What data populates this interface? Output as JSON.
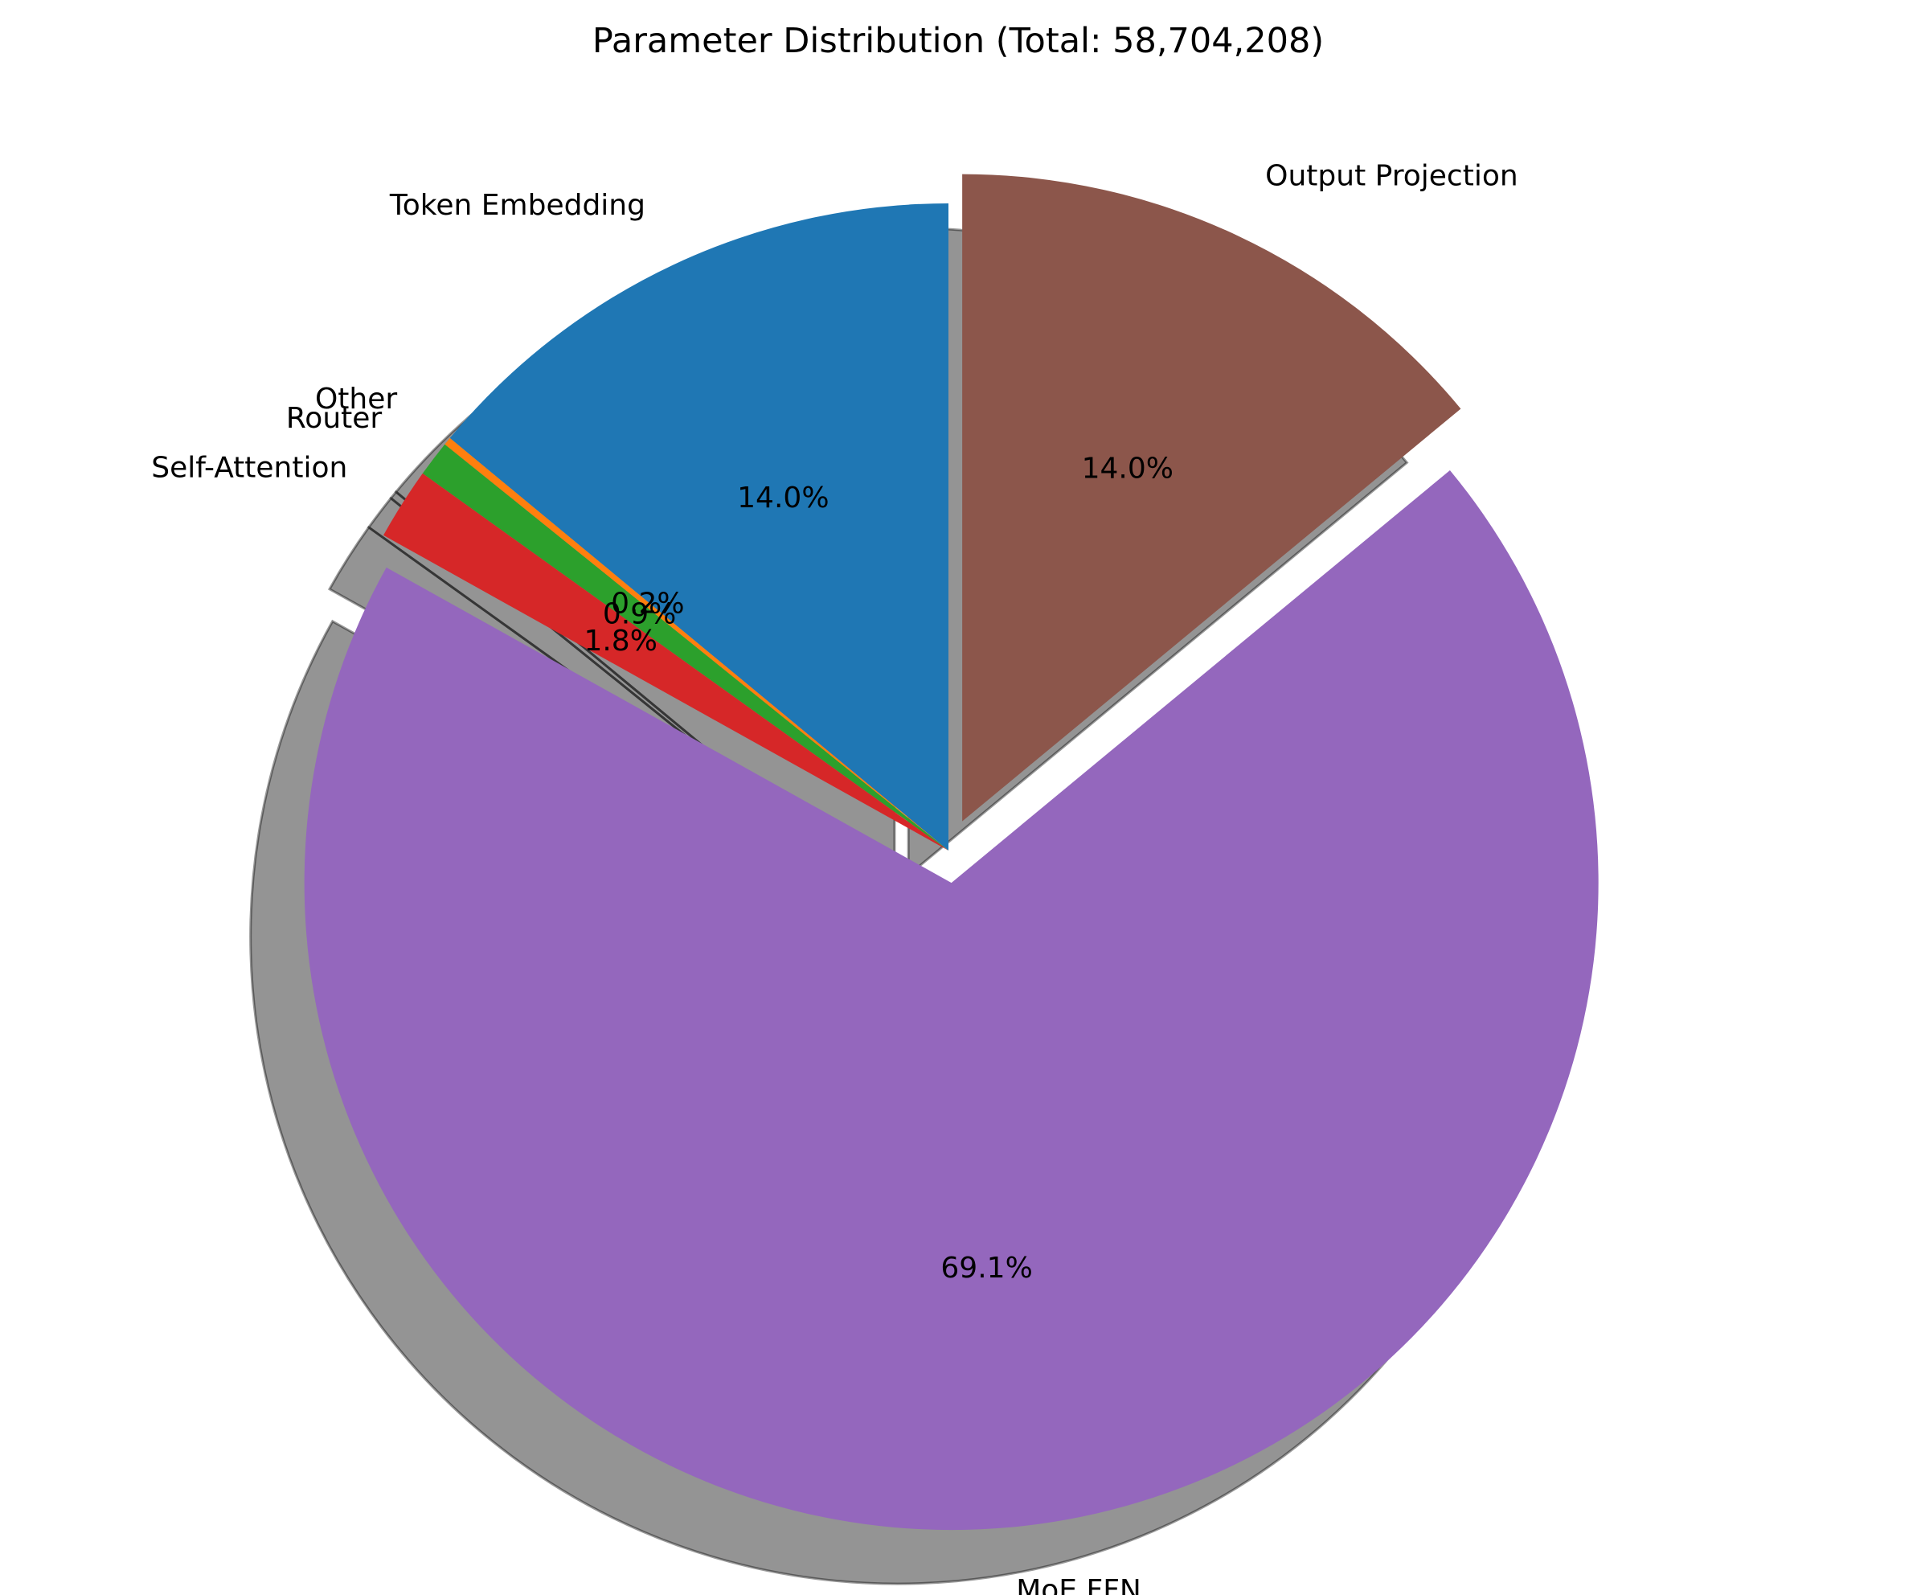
{
  "chart_data": {
    "type": "pie",
    "title": "Parameter Distribution (Total: 58,704,208)",
    "start_angle_deg": 90,
    "direction": "counterclockwise",
    "shadow": true,
    "slices": [
      {
        "label": "Token Embedding",
        "value": 14.0,
        "pct_label": "14.0%",
        "color": "#1f77b4",
        "explode": 0
      },
      {
        "label": "Other",
        "value": 0.2,
        "pct_label": "0.2%",
        "color": "#ff7f0e",
        "explode": 0
      },
      {
        "label": "Router",
        "value": 0.9,
        "pct_label": "0.9%",
        "color": "#2ca02c",
        "explode": 0
      },
      {
        "label": "Self-Attention",
        "value": 1.8,
        "pct_label": "1.8%",
        "color": "#d62728",
        "explode": 0
      },
      {
        "label": "MoE FFN",
        "value": 69.1,
        "pct_label": "69.1%",
        "color": "#9467bd",
        "explode": 0.05
      },
      {
        "label": "Output Projection",
        "value": 14.0,
        "pct_label": "14.0%",
        "color": "#8c564b",
        "explode": 0.05
      }
    ]
  }
}
